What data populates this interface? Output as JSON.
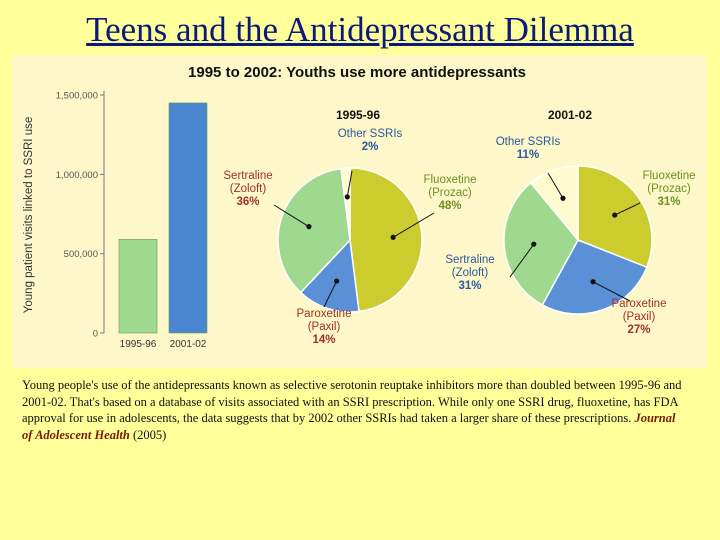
{
  "slide": {
    "title": "Teens and the Antidepressant Dilemma",
    "caption": "Young people's use of the antidepressants known as selective serotonin reuptake inhibitors more than doubled between 1995-96 and 2001-02. That's based on a database of visits associated with an SSRI prescription. While only one SSRI drug, fluoxetine, has FDA approval for use in adolescents, the data suggests that by 2002 other SSRIs had taken a larger share of these prescriptions.",
    "caption_source": "Journal of Adolescent Health",
    "caption_year": "(2005)"
  },
  "colors": {
    "background": "#ffff99",
    "title": "#0a1a7a",
    "bar": "#9fd98f",
    "bar_2001": "#4a86cf",
    "fluoxetine": "#cccc2e",
    "sertraline": "#9fd98f",
    "paroxetine": "#5a90d6",
    "other": "#fffbd0",
    "label_blue": "#2a5aa0",
    "label_green": "#6f8f22",
    "label_red": "#a03220"
  },
  "chart_data": [
    {
      "type": "bar",
      "title": "1995 to 2002: Youths use more antidepressants",
      "ylabel": "Young patient visits linked to SSRI use",
      "categories": [
        "1995-96",
        "2001-02"
      ],
      "values": [
        590000,
        1450000
      ],
      "ylim": [
        0,
        1500000
      ],
      "yticks": [
        {
          "value": 0,
          "label": "0"
        },
        {
          "value": 500000,
          "label": "500,000"
        },
        {
          "value": 1000000,
          "label": "1,000,000"
        },
        {
          "value": 1500000,
          "label": "1,500,000"
        }
      ],
      "grid": false
    },
    {
      "type": "pie",
      "title": "1995-96",
      "slices": [
        {
          "name": "Fluoxetine",
          "sub": "(Prozac)",
          "pct": "48%",
          "value": 48,
          "color_key": "fluoxetine",
          "label_color_key": "label_green"
        },
        {
          "name": "Paroxetine",
          "sub": "(Paxil)",
          "pct": "14%",
          "value": 14,
          "color_key": "paroxetine",
          "label_color_key": "label_red"
        },
        {
          "name": "Sertraline",
          "sub": "(Zoloft)",
          "pct": "36%",
          "value": 36,
          "color_key": "sertraline",
          "label_color_key": "label_red"
        },
        {
          "name": "Other SSRIs",
          "sub": "",
          "pct": "2%",
          "value": 2,
          "color_key": "other",
          "label_color_key": "label_blue"
        }
      ]
    },
    {
      "type": "pie",
      "title": "2001-02",
      "slices": [
        {
          "name": "Fluoxetine",
          "sub": "(Prozac)",
          "pct": "31%",
          "value": 31,
          "color_key": "fluoxetine",
          "label_color_key": "label_green"
        },
        {
          "name": "Paroxetine",
          "sub": "(Paxil)",
          "pct": "27%",
          "value": 27,
          "color_key": "paroxetine",
          "label_color_key": "label_red"
        },
        {
          "name": "Sertraline",
          "sub": "(Zoloft)",
          "pct": "31%",
          "value": 31,
          "color_key": "sertraline",
          "label_color_key": "label_blue"
        },
        {
          "name": "Other SSRIs",
          "sub": "",
          "pct": "11%",
          "value": 11,
          "color_key": "other",
          "label_color_key": "label_blue"
        }
      ]
    }
  ]
}
